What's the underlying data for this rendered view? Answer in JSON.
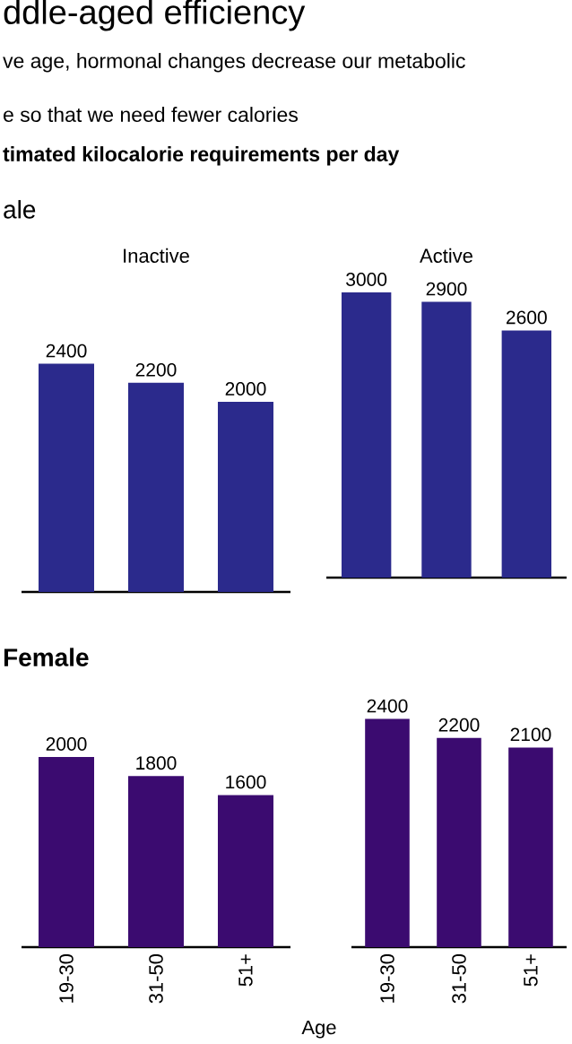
{
  "chart_data": [
    {
      "type": "bar",
      "title": "ddle-aged efficiency",
      "subtitle": "ve age, hormonal changes decrease our metabolic",
      "annotations": [
        "e so that we need fewer calories",
        "timated kilocalorie requirements per day",
        "ale",
        "Inactive"
      ],
      "categories": [
        null,
        null,
        null
      ],
      "values": [
        2400,
        2200,
        2000
      ],
      "color": "#2b2a8c",
      "data_labels": true,
      "tick_labels": false
    },
    {
      "type": "bar",
      "annotations": [
        "Active"
      ],
      "categories": [
        null,
        null,
        null
      ],
      "values": [
        3000,
        2900,
        2600
      ],
      "color": "#2b2a8c",
      "data_labels": true,
      "tick_labels": false
    },
    {
      "type": "bar",
      "annotations": [
        "Female"
      ],
      "categories": [
        "19-30",
        "31-50",
        "51+"
      ],
      "values": [
        2000,
        1800,
        1600
      ],
      "color": "#3b0b70",
      "data_labels": true,
      "tick_labels": "x"
    },
    {
      "type": "bar",
      "xlabel": "Age",
      "categories": [
        "19-30",
        "31-50",
        "51+"
      ],
      "values": [
        2400,
        2200,
        2100
      ],
      "color": "#3b0b70",
      "data_labels": true,
      "tick_labels": "x"
    }
  ]
}
